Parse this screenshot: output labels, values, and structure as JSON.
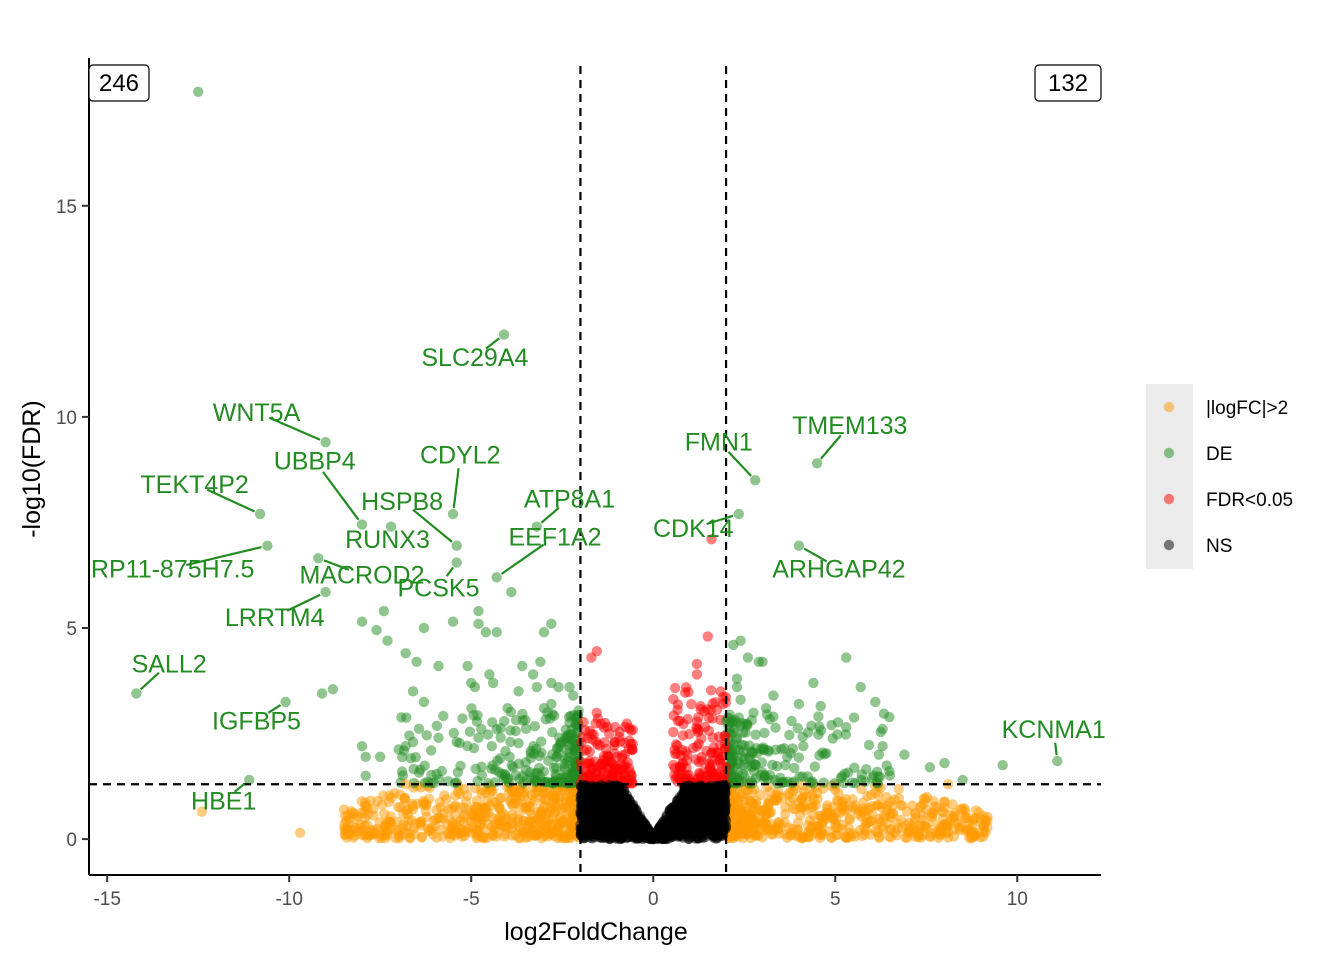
{
  "chart_data": {
    "type": "scatter",
    "subtype": "volcano",
    "xlabel": "log2FoldChange",
    "ylabel": "-log10(FDR)",
    "xlim": [
      -15.5,
      12.3
    ],
    "ylim": [
      -0.85,
      18.5
    ],
    "x_ticks": [
      -15,
      -10,
      -5,
      0,
      5,
      10
    ],
    "y_ticks": [
      0,
      5,
      10,
      15
    ],
    "thresholds": {
      "logfc": [
        -2,
        2
      ],
      "neg_log10_fdr": 1.3
    },
    "counts": {
      "down": "246",
      "up": "132"
    },
    "legend": [
      {
        "name": "|logFC|>2",
        "color": "#FF9900"
      },
      {
        "name": "DE",
        "color": "#228B22"
      },
      {
        "name": "FDR<0.05",
        "color": "#FF0000"
      },
      {
        "name": "NS",
        "color": "#000000"
      }
    ],
    "labeled_genes": [
      {
        "gene": "SLC29A4",
        "x": -4.1,
        "y": 11.95,
        "lx": -4.9,
        "ly": 11.2
      },
      {
        "gene": "WNT5A",
        "x": -9.0,
        "y": 9.4,
        "lx": -10.9,
        "ly": 9.9
      },
      {
        "gene": "UBBP4",
        "x": -8.0,
        "y": 7.45,
        "lx": -9.3,
        "ly": 8.75
      },
      {
        "gene": "CDYL2",
        "x": -5.5,
        "y": 7.7,
        "lx": -5.3,
        "ly": 8.9
      },
      {
        "gene": "HSPB8",
        "x": -5.4,
        "y": 6.95,
        "lx": -6.9,
        "ly": 7.8
      },
      {
        "gene": "TEKT4P2",
        "x": -10.8,
        "y": 7.7,
        "lx": -12.6,
        "ly": 8.2
      },
      {
        "gene": "ATP8A1",
        "x": -3.2,
        "y": 7.4,
        "lx": -2.3,
        "ly": 7.85
      },
      {
        "gene": "RUNX3",
        "x": -7.2,
        "y": 7.4,
        "lx": -7.3,
        "ly": 6.9
      },
      {
        "gene": "EEF1A2",
        "x": -4.3,
        "y": 6.2,
        "lx": -2.7,
        "ly": 6.95
      },
      {
        "gene": "RP11-875H7.5",
        "x": -10.6,
        "y": 6.95,
        "lx": -13.2,
        "ly": 6.2
      },
      {
        "gene": "MACROD2",
        "x": -9.2,
        "y": 6.65,
        "lx": -8.0,
        "ly": 6.05
      },
      {
        "gene": "PCSK5",
        "x": -5.4,
        "y": 6.55,
        "lx": -5.9,
        "ly": 5.75
      },
      {
        "gene": "LRRTM4",
        "x": -9.0,
        "y": 5.85,
        "lx": -10.4,
        "ly": 5.05
      },
      {
        "gene": "SALL2",
        "x": -14.2,
        "y": 3.45,
        "lx": -13.3,
        "ly": 3.95
      },
      {
        "gene": "IGFBP5",
        "x": -10.1,
        "y": 3.25,
        "lx": -10.9,
        "ly": 2.6
      },
      {
        "gene": "HBE1",
        "x": -11.1,
        "y": 1.4,
        "lx": -11.8,
        "ly": 0.7
      },
      {
        "gene": "FMN1",
        "x": 2.8,
        "y": 8.5,
        "lx": 1.8,
        "ly": 9.2
      },
      {
        "gene": "TMEM133",
        "x": 4.5,
        "y": 8.9,
        "lx": 5.4,
        "ly": 9.6
      },
      {
        "gene": "CDK14",
        "x": 2.35,
        "y": 7.7,
        "lx": 1.1,
        "ly": 7.15
      },
      {
        "gene": "ARHGAP42",
        "x": 4.0,
        "y": 6.95,
        "lx": 5.1,
        "ly": 6.2
      },
      {
        "gene": "KCNMA1",
        "x": 11.1,
        "y": 1.85,
        "lx": 11.0,
        "ly": 2.4
      }
    ],
    "de_points": [
      [
        -12.5,
        17.7
      ],
      [
        -4.1,
        11.95
      ],
      [
        -9.0,
        9.4
      ],
      [
        2.8,
        8.5
      ],
      [
        4.5,
        8.9
      ],
      [
        -8.0,
        7.45
      ],
      [
        -5.5,
        7.7
      ],
      [
        -10.8,
        7.7
      ],
      [
        -3.2,
        7.4
      ],
      [
        -7.2,
        7.4
      ],
      [
        -5.4,
        6.95
      ],
      [
        -10.6,
        6.95
      ],
      [
        -9.2,
        6.65
      ],
      [
        -5.4,
        6.55
      ],
      [
        -4.3,
        6.2
      ],
      [
        2.35,
        7.7
      ],
      [
        4.0,
        6.95
      ],
      [
        -9.0,
        5.85
      ],
      [
        -3.9,
        5.85
      ],
      [
        -7.4,
        5.4
      ],
      [
        -8.0,
        5.15
      ],
      [
        -7.6,
        4.95
      ],
      [
        -7.3,
        4.7
      ],
      [
        -6.3,
        5.0
      ],
      [
        -6.8,
        4.4
      ],
      [
        -5.5,
        5.15
      ],
      [
        -4.8,
        5.4
      ],
      [
        -4.6,
        4.9
      ],
      [
        -4.8,
        5.1
      ],
      [
        -4.3,
        4.9
      ],
      [
        -3.0,
        4.9
      ],
      [
        -2.8,
        5.1
      ],
      [
        -6.5,
        4.2
      ],
      [
        -5.9,
        4.1
      ],
      [
        -5.1,
        4.1
      ],
      [
        -3.6,
        4.1
      ],
      [
        -3.1,
        4.2
      ],
      [
        -3.3,
        3.9
      ],
      [
        -6.6,
        3.5
      ],
      [
        -6.3,
        3.25
      ],
      [
        -5.0,
        3.7
      ],
      [
        -4.9,
        3.6
      ],
      [
        -4.5,
        3.9
      ],
      [
        -4.4,
        3.7
      ],
      [
        -3.7,
        3.5
      ],
      [
        -3.2,
        3.6
      ],
      [
        -2.8,
        3.7
      ],
      [
        -2.6,
        3.6
      ],
      [
        -2.3,
        3.6
      ],
      [
        -2.2,
        3.4
      ],
      [
        -2.8,
        3.2
      ],
      [
        -3.0,
        3.1
      ],
      [
        -4.0,
        3.1
      ],
      [
        -9.1,
        3.45
      ],
      [
        -8.8,
        3.55
      ],
      [
        -10.1,
        3.25
      ],
      [
        -14.2,
        3.45
      ],
      [
        -11.1,
        1.4
      ],
      [
        2.2,
        4.6
      ],
      [
        2.4,
        4.7
      ],
      [
        2.6,
        4.3
      ],
      [
        2.9,
        4.2
      ],
      [
        3.0,
        4.2
      ],
      [
        5.3,
        4.3
      ],
      [
        4.4,
        3.7
      ],
      [
        5.7,
        3.6
      ],
      [
        2.3,
        3.8
      ],
      [
        2.3,
        3.6
      ],
      [
        3.3,
        3.4
      ],
      [
        4.0,
        3.2
      ],
      [
        6.1,
        3.25
      ],
      [
        4.6,
        3.15
      ],
      [
        2.4,
        3.3
      ],
      [
        3.1,
        3.1
      ],
      [
        3.3,
        2.9
      ],
      [
        3.8,
        2.8
      ],
      [
        4.9,
        2.7
      ],
      [
        5.3,
        2.65
      ],
      [
        6.3,
        2.2
      ],
      [
        6.9,
        2.0
      ],
      [
        6.2,
        2.0
      ],
      [
        7.6,
        1.7
      ],
      [
        8.0,
        1.8
      ],
      [
        9.6,
        1.75
      ],
      [
        11.1,
        1.85
      ],
      [
        8.5,
        1.4
      ],
      [
        -8.0,
        2.2
      ],
      [
        -7.9,
        1.95
      ],
      [
        -6.8,
        2.2
      ],
      [
        -6.6,
        2.3
      ],
      [
        -6.1,
        2.1
      ],
      [
        -5.9,
        2.4
      ],
      [
        -5.4,
        2.3
      ],
      [
        -4.8,
        2.4
      ],
      [
        -4.3,
        2.6
      ],
      [
        -7.5,
        1.95
      ],
      [
        -6.9,
        1.6
      ],
      [
        -7.9,
        1.5
      ],
      [
        2.0,
        2.8
      ],
      [
        2.3,
        2.4
      ]
    ],
    "clouds": [
      {
        "group": "|logFC|>2",
        "xr": [
          -8.5,
          -2.05
        ],
        "yr": [
          0.02,
          1.28
        ],
        "skew": 1.6,
        "n": 520
      },
      {
        "group": "|logFC|>2",
        "xr": [
          2.05,
          9.2
        ],
        "yr": [
          0.02,
          1.28
        ],
        "skew": 1.6,
        "n": 520
      },
      {
        "group": "DE",
        "xr": [
          -7.0,
          -2.05
        ],
        "yr": [
          1.32,
          3.1
        ],
        "skew": 2.2,
        "n": 240
      },
      {
        "group": "DE",
        "xr": [
          2.05,
          6.5
        ],
        "yr": [
          1.32,
          3.0
        ],
        "skew": 2.2,
        "n": 200
      },
      {
        "group": "FDR<0.05",
        "xr": [
          -2.0,
          -0.55
        ],
        "yr": [
          1.32,
          3.0
        ],
        "skew": 1.2,
        "n": 150
      },
      {
        "group": "FDR<0.05",
        "xr": [
          0.55,
          2.0
        ],
        "yr": [
          1.32,
          3.6
        ],
        "skew": 1.2,
        "n": 150
      },
      {
        "group": "NS",
        "xr": [
          -2.0,
          2.0
        ],
        "yr": [
          0.0,
          1.28
        ],
        "skew": 1.0,
        "n": 1400
      }
    ],
    "extra_points": [
      {
        "group": "FDR<0.05",
        "x": -1.55,
        "y": 4.45
      },
      {
        "group": "FDR<0.05",
        "x": -1.7,
        "y": 4.3
      },
      {
        "group": "FDR<0.05",
        "x": 1.5,
        "y": 4.8
      },
      {
        "group": "FDR<0.05",
        "x": 1.2,
        "y": 4.15
      },
      {
        "group": "FDR<0.05",
        "x": 1.6,
        "y": 7.1
      },
      {
        "group": "FDR<0.05",
        "x": 1.2,
        "y": 3.9
      },
      {
        "group": "|logFC|>2",
        "x": -9.7,
        "y": 0.15
      },
      {
        "group": "|logFC|>2",
        "x": -12.4,
        "y": 0.65
      },
      {
        "group": "|logFC|>2",
        "x": -8.0,
        "y": 0.2
      },
      {
        "group": "|logFC|>2",
        "x": -7.4,
        "y": 0.2
      },
      {
        "group": "|logFC|>2",
        "x": -6.8,
        "y": 0.15
      },
      {
        "group": "|logFC|>2",
        "x": -6.8,
        "y": 1.3
      },
      {
        "group": "|logFC|>2",
        "x": 8.1,
        "y": 1.3
      }
    ]
  }
}
